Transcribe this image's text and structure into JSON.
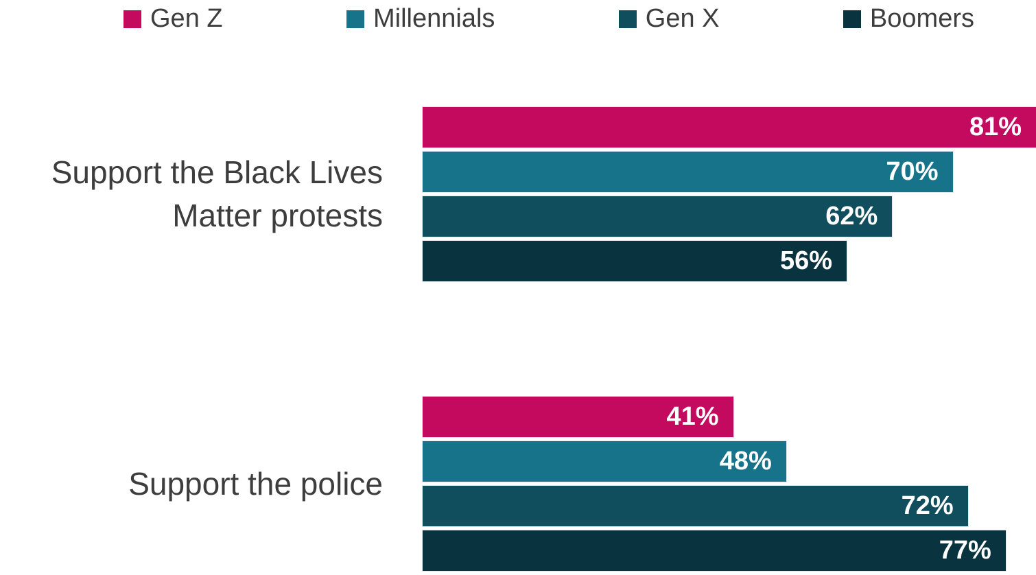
{
  "legend": {
    "items": [
      {
        "label": "Gen Z",
        "color": "#c40a5e"
      },
      {
        "label": "Millennials",
        "color": "#17738a"
      },
      {
        "label": "Gen X",
        "color": "#104e5d"
      },
      {
        "label": "Boomers",
        "color": "#0a3340"
      }
    ]
  },
  "chart_data": {
    "type": "bar",
    "orientation": "horizontal",
    "title": "",
    "xlabel": "",
    "ylabel": "",
    "grid": false,
    "legend_position": "top",
    "value_suffix": "%",
    "xlim": [
      0,
      81
    ],
    "categories": [
      "Support the Black Lives Matter protests",
      "Support the police"
    ],
    "series": [
      {
        "name": "Gen Z",
        "color": "#c40a5e",
        "values": [
          81,
          41
        ],
        "labels": [
          "81%",
          "41%"
        ]
      },
      {
        "name": "Millennials",
        "color": "#17738a",
        "values": [
          70,
          48
        ],
        "labels": [
          "70%",
          "48%"
        ]
      },
      {
        "name": "Gen X",
        "color": "#104e5d",
        "values": [
          62,
          72
        ],
        "labels": [
          "62%",
          "72%"
        ]
      },
      {
        "name": "Boomers",
        "color": "#0a3340",
        "values": [
          56,
          77
        ],
        "labels": [
          "56%",
          "77%"
        ]
      }
    ],
    "text_color": "#3d3d3d",
    "bar_label_color": "#ffffff"
  }
}
